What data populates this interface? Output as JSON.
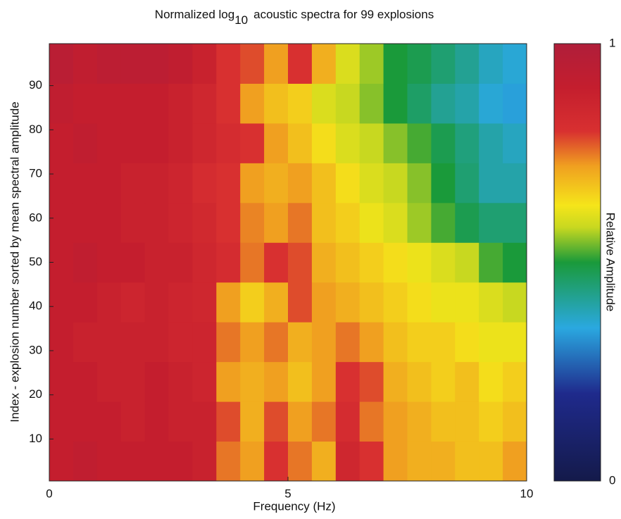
{
  "chart_data": {
    "type": "heatmap",
    "title": "Normalized log",
    "title_subscript": "10",
    "title_suffix": "acoustic spectra for 99 explosions",
    "x_label": "Frequency (Hz)",
    "y_label": "Index - explosion number sorted by mean spectral amplitude",
    "colorbar_label": "Relative Amplitude",
    "x": [
      0.25,
      0.75,
      1.25,
      1.75,
      2.25,
      2.75,
      3.25,
      3.75,
      4.25,
      4.75,
      5.25,
      5.75,
      6.25,
      6.75,
      7.25,
      7.75,
      8.25,
      8.75,
      9.25,
      9.75
    ],
    "y": [
      5,
      14,
      23,
      32,
      41,
      50,
      59,
      68,
      77,
      86,
      95
    ],
    "z": [
      [
        0.9,
        0.92,
        0.9,
        0.9,
        0.9,
        0.9,
        0.88,
        0.75,
        0.72,
        0.8,
        0.75,
        0.7,
        0.85,
        0.8,
        0.72,
        0.7,
        0.7,
        0.68,
        0.68,
        0.72
      ],
      [
        0.9,
        0.9,
        0.9,
        0.88,
        0.9,
        0.88,
        0.88,
        0.78,
        0.7,
        0.78,
        0.72,
        0.75,
        0.82,
        0.75,
        0.72,
        0.7,
        0.68,
        0.68,
        0.66,
        0.68
      ],
      [
        0.9,
        0.9,
        0.88,
        0.88,
        0.9,
        0.88,
        0.86,
        0.72,
        0.7,
        0.72,
        0.68,
        0.72,
        0.8,
        0.78,
        0.7,
        0.68,
        0.66,
        0.68,
        0.64,
        0.66
      ],
      [
        0.9,
        0.88,
        0.88,
        0.88,
        0.88,
        0.86,
        0.86,
        0.75,
        0.72,
        0.75,
        0.7,
        0.72,
        0.75,
        0.72,
        0.68,
        0.66,
        0.66,
        0.64,
        0.62,
        0.62
      ],
      [
        0.9,
        0.9,
        0.88,
        0.86,
        0.88,
        0.86,
        0.85,
        0.72,
        0.66,
        0.7,
        0.78,
        0.72,
        0.7,
        0.68,
        0.66,
        0.64,
        0.62,
        0.62,
        0.6,
        0.58
      ],
      [
        0.9,
        0.92,
        0.9,
        0.9,
        0.88,
        0.88,
        0.85,
        0.82,
        0.75,
        0.8,
        0.78,
        0.7,
        0.68,
        0.66,
        0.64,
        0.62,
        0.6,
        0.58,
        0.52,
        0.5
      ],
      [
        0.9,
        0.9,
        0.9,
        0.88,
        0.88,
        0.86,
        0.84,
        0.8,
        0.74,
        0.72,
        0.75,
        0.68,
        0.66,
        0.62,
        0.6,
        0.56,
        0.52,
        0.48,
        0.45,
        0.45
      ],
      [
        0.9,
        0.9,
        0.9,
        0.88,
        0.88,
        0.86,
        0.82,
        0.8,
        0.72,
        0.7,
        0.72,
        0.68,
        0.64,
        0.6,
        0.58,
        0.55,
        0.5,
        0.45,
        0.4,
        0.4
      ],
      [
        0.9,
        0.92,
        0.9,
        0.9,
        0.9,
        0.88,
        0.85,
        0.82,
        0.8,
        0.72,
        0.68,
        0.64,
        0.6,
        0.58,
        0.55,
        0.52,
        0.48,
        0.44,
        0.4,
        0.38
      ],
      [
        0.92,
        0.9,
        0.9,
        0.9,
        0.9,
        0.88,
        0.85,
        0.8,
        0.72,
        0.68,
        0.66,
        0.6,
        0.58,
        0.55,
        0.5,
        0.46,
        0.42,
        0.4,
        0.36,
        0.34
      ],
      [
        0.95,
        0.92,
        0.94,
        0.94,
        0.94,
        0.92,
        0.88,
        0.8,
        0.78,
        0.72,
        0.8,
        0.7,
        0.6,
        0.56,
        0.5,
        0.48,
        0.45,
        0.42,
        0.38,
        0.36
      ]
    ],
    "xlim": [
      0,
      10
    ],
    "xticks": [
      0,
      5,
      10
    ],
    "ylim": [
      0.5,
      99.5
    ],
    "yticks": [
      10,
      20,
      30,
      40,
      50,
      60,
      70,
      80,
      90
    ],
    "clim": [
      0,
      1
    ],
    "colorbar_ticks": [
      0,
      1
    ],
    "colorscale": [
      [
        0,
        "#141a4a"
      ],
      [
        0.2,
        "#1f2a8c"
      ],
      [
        0.35,
        "#2aa8e0"
      ],
      [
        0.5,
        "#1a9a3a"
      ],
      [
        0.58,
        "#c8d820"
      ],
      [
        0.63,
        "#f5e51a"
      ],
      [
        0.72,
        "#f0a020"
      ],
      [
        0.8,
        "#d83030"
      ],
      [
        0.9,
        "#c41e2e"
      ],
      [
        1,
        "#b01e3a"
      ]
    ]
  }
}
